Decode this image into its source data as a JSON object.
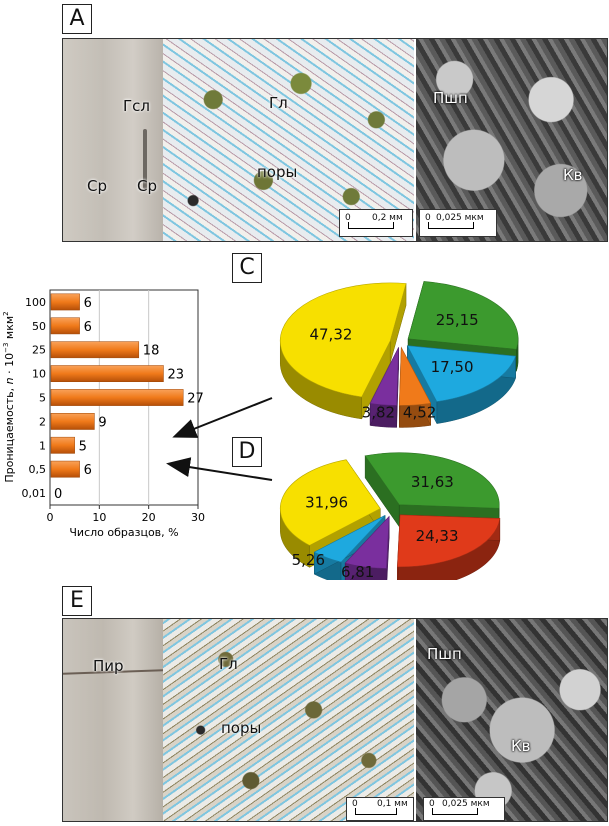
{
  "panels": {
    "A": {
      "label": "A",
      "core_labels": [
        "Гсл",
        "Ср",
        "Ср"
      ],
      "thin_section_labels": [
        "Гл",
        "поры"
      ],
      "thin_section_scale": {
        "zero": "0",
        "value": "0,2 мм"
      },
      "sem_labels": [
        "Пшп",
        "Кв"
      ],
      "sem_scale": {
        "zero": "0",
        "value": "0,025 мкм"
      }
    },
    "C": {
      "label": "C"
    },
    "D": {
      "label": "D"
    },
    "E": {
      "label": "E",
      "core_labels": [
        "Пир"
      ],
      "thin_section_labels": [
        "Гл",
        "поры"
      ],
      "thin_section_scale": {
        "zero": "0",
        "value": "0,1 мм"
      },
      "sem_labels": [
        "Пшп",
        "Кв"
      ],
      "sem_scale": {
        "zero": "0",
        "value": "0,025 мкм"
      }
    }
  },
  "colors": {
    "bar": "#f07a1a",
    "bar_dark": "#b54f08",
    "pie_yellow": "#f7e000",
    "pie_green": "#3c9a2e",
    "pie_cyan": "#1ea9df",
    "pie_orange": "#f07a1a",
    "pie_purple": "#7a2f9e",
    "pie_red": "#e03a1a",
    "pie_blue": "#2a6fc9"
  },
  "chart_data": [
    {
      "type": "bar",
      "orientation": "horizontal",
      "categories": [
        "100",
        "50",
        "25",
        "10",
        "5",
        "2",
        "1",
        "0,5",
        "0,01"
      ],
      "values": [
        6,
        6,
        18,
        23,
        27,
        9,
        5,
        6,
        0
      ],
      "data_labels": [
        "6",
        "6",
        "18",
        "23",
        "27",
        "9",
        "5",
        "6",
        "0"
      ],
      "xlabel": "Число образцов, %",
      "ylabel_prefix": "Проницаемость, ",
      "ylabel_var": "n",
      "ylabel_rest": " · 10",
      "ylabel_exp": "−3",
      "ylabel_unit": " мкм",
      "ylabel_unit_exp": "2",
      "xticks": [
        "0",
        "10",
        "20",
        "30"
      ],
      "xlim": [
        0,
        30
      ],
      "grid": "vertical at 10 and 20"
    },
    {
      "type": "pie",
      "panel": "C",
      "slices": [
        {
          "value": 47.32,
          "label": "47,32",
          "color": "#f7e000"
        },
        {
          "value": 25.15,
          "label": "25,15",
          "color": "#3c9a2e"
        },
        {
          "value": 17.5,
          "label": "17,50",
          "color": "#1ea9df"
        },
        {
          "value": 4.52,
          "label": "4,52",
          "color": "#f07a1a"
        },
        {
          "value": 3.82,
          "label": "3,82",
          "color": "#7a2f9e"
        }
      ]
    },
    {
      "type": "pie",
      "panel": "D",
      "slices": [
        {
          "value": 31.96,
          "label": "31,96",
          "color": "#f7e000"
        },
        {
          "value": 31.63,
          "label": "31,63",
          "color": "#3c9a2e"
        },
        {
          "value": 24.33,
          "label": "24,33",
          "color": "#e03a1a"
        },
        {
          "value": 6.81,
          "label": "6,81",
          "color": "#7a2f9e"
        },
        {
          "value": 5.26,
          "label": "5,26",
          "color": "#1ea9df"
        }
      ]
    }
  ]
}
